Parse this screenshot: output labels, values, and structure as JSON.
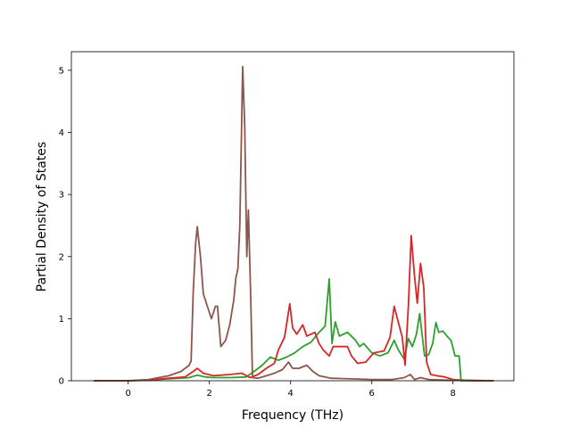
{
  "chart_data": {
    "type": "line",
    "title": "",
    "xlabel": "Frequency (THz)",
    "ylabel": "Partial Density of States",
    "xlim": [
      -1.4,
      9.5
    ],
    "ylim": [
      0,
      5.3
    ],
    "xticks": [
      0,
      2,
      4,
      6,
      8
    ],
    "xtick_labels": [
      "0",
      "2",
      "4",
      "6",
      "8"
    ],
    "yticks": [
      0,
      1,
      2,
      3,
      4,
      5
    ],
    "ytick_labels": [
      "0",
      "1",
      "2",
      "3",
      "4",
      "5"
    ],
    "grid": false,
    "legend": "none",
    "series": [
      {
        "color": "#2ca02c",
        "points": [
          [
            -0.85,
            0
          ],
          [
            0,
            0
          ],
          [
            0.5,
            0.01
          ],
          [
            1,
            0.03
          ],
          [
            1.5,
            0.05
          ],
          [
            1.7,
            0.09
          ],
          [
            1.9,
            0.06
          ],
          [
            2.1,
            0.05
          ],
          [
            2.5,
            0.05
          ],
          [
            2.9,
            0.06
          ],
          [
            3.1,
            0.15
          ],
          [
            3.3,
            0.25
          ],
          [
            3.5,
            0.38
          ],
          [
            3.7,
            0.33
          ],
          [
            3.9,
            0.38
          ],
          [
            4.1,
            0.45
          ],
          [
            4.3,
            0.55
          ],
          [
            4.5,
            0.62
          ],
          [
            4.7,
            0.78
          ],
          [
            4.85,
            0.88
          ],
          [
            4.95,
            1.64
          ],
          [
            5.02,
            0.6
          ],
          [
            5.1,
            0.95
          ],
          [
            5.2,
            0.72
          ],
          [
            5.4,
            0.78
          ],
          [
            5.6,
            0.65
          ],
          [
            5.7,
            0.55
          ],
          [
            5.8,
            0.6
          ],
          [
            6,
            0.45
          ],
          [
            6.2,
            0.4
          ],
          [
            6.4,
            0.45
          ],
          [
            6.55,
            0.65
          ],
          [
            6.65,
            0.5
          ],
          [
            6.8,
            0.35
          ],
          [
            6.9,
            0.68
          ],
          [
            7,
            0.55
          ],
          [
            7.1,
            0.75
          ],
          [
            7.18,
            1.08
          ],
          [
            7.3,
            0.4
          ],
          [
            7.4,
            0.42
          ],
          [
            7.5,
            0.6
          ],
          [
            7.58,
            0.94
          ],
          [
            7.65,
            0.78
          ],
          [
            7.75,
            0.8
          ],
          [
            7.85,
            0.72
          ],
          [
            7.95,
            0.65
          ],
          [
            8.05,
            0.4
          ],
          [
            8.15,
            0.4
          ],
          [
            8.2,
            0
          ],
          [
            9,
            0
          ]
        ]
      },
      {
        "color": "#d62728",
        "points": [
          [
            -0.85,
            0
          ],
          [
            0,
            0
          ],
          [
            0.5,
            0.01
          ],
          [
            1,
            0.04
          ],
          [
            1.4,
            0.06
          ],
          [
            1.6,
            0.15
          ],
          [
            1.7,
            0.2
          ],
          [
            1.85,
            0.12
          ],
          [
            2.1,
            0.08
          ],
          [
            2.5,
            0.1
          ],
          [
            2.8,
            0.12
          ],
          [
            3,
            0.05
          ],
          [
            3.2,
            0.1
          ],
          [
            3.4,
            0.2
          ],
          [
            3.6,
            0.28
          ],
          [
            3.7,
            0.5
          ],
          [
            3.85,
            0.7
          ],
          [
            3.98,
            1.24
          ],
          [
            4.05,
            0.85
          ],
          [
            4.15,
            0.75
          ],
          [
            4.3,
            0.9
          ],
          [
            4.4,
            0.72
          ],
          [
            4.6,
            0.78
          ],
          [
            4.7,
            0.6
          ],
          [
            4.8,
            0.5
          ],
          [
            4.95,
            0.4
          ],
          [
            5.05,
            0.55
          ],
          [
            5.2,
            0.55
          ],
          [
            5.4,
            0.55
          ],
          [
            5.5,
            0.4
          ],
          [
            5.65,
            0.28
          ],
          [
            5.85,
            0.3
          ],
          [
            6.05,
            0.45
          ],
          [
            6.3,
            0.48
          ],
          [
            6.45,
            0.7
          ],
          [
            6.55,
            1.2
          ],
          [
            6.65,
            0.95
          ],
          [
            6.75,
            0.7
          ],
          [
            6.82,
            0.25
          ],
          [
            6.9,
            1.2
          ],
          [
            6.97,
            2.34
          ],
          [
            7.05,
            1.7
          ],
          [
            7.12,
            1.25
          ],
          [
            7.2,
            1.89
          ],
          [
            7.28,
            1.5
          ],
          [
            7.35,
            0.3
          ],
          [
            7.45,
            0.1
          ],
          [
            7.6,
            0.08
          ],
          [
            7.8,
            0.06
          ],
          [
            8,
            0.02
          ],
          [
            8.5,
            0
          ],
          [
            9,
            0
          ]
        ]
      },
      {
        "color": "#8c564b",
        "points": [
          [
            -0.85,
            0
          ],
          [
            0,
            0
          ],
          [
            0.5,
            0.02
          ],
          [
            1,
            0.08
          ],
          [
            1.3,
            0.15
          ],
          [
            1.5,
            0.25
          ],
          [
            1.55,
            0.32
          ],
          [
            1.6,
            1.4
          ],
          [
            1.66,
            2.2
          ],
          [
            1.7,
            2.48
          ],
          [
            1.78,
            2.0
          ],
          [
            1.85,
            1.4
          ],
          [
            1.95,
            1.2
          ],
          [
            2.05,
            1.0
          ],
          [
            2.15,
            1.2
          ],
          [
            2.2,
            1.2
          ],
          [
            2.28,
            0.55
          ],
          [
            2.4,
            0.65
          ],
          [
            2.5,
            0.9
          ],
          [
            2.6,
            1.3
          ],
          [
            2.65,
            1.65
          ],
          [
            2.7,
            1.8
          ],
          [
            2.75,
            2.5
          ],
          [
            2.82,
            5.06
          ],
          [
            2.87,
            4.1
          ],
          [
            2.92,
            2.0
          ],
          [
            2.96,
            2.75
          ],
          [
            3.02,
            1.3
          ],
          [
            3.06,
            0.05
          ],
          [
            3.2,
            0.04
          ],
          [
            3.4,
            0.08
          ],
          [
            3.6,
            0.12
          ],
          [
            3.8,
            0.18
          ],
          [
            3.95,
            0.3
          ],
          [
            4.05,
            0.2
          ],
          [
            4.2,
            0.2
          ],
          [
            4.4,
            0.25
          ],
          [
            4.55,
            0.15
          ],
          [
            4.7,
            0.08
          ],
          [
            5,
            0.04
          ],
          [
            5.5,
            0.03
          ],
          [
            6,
            0.02
          ],
          [
            6.5,
            0.02
          ],
          [
            6.8,
            0.05
          ],
          [
            6.95,
            0.1
          ],
          [
            7.05,
            0.02
          ],
          [
            7.2,
            0.05
          ],
          [
            7.4,
            0.02
          ],
          [
            7.8,
            0.01
          ],
          [
            8.2,
            0.01
          ],
          [
            9,
            0
          ]
        ]
      }
    ]
  }
}
